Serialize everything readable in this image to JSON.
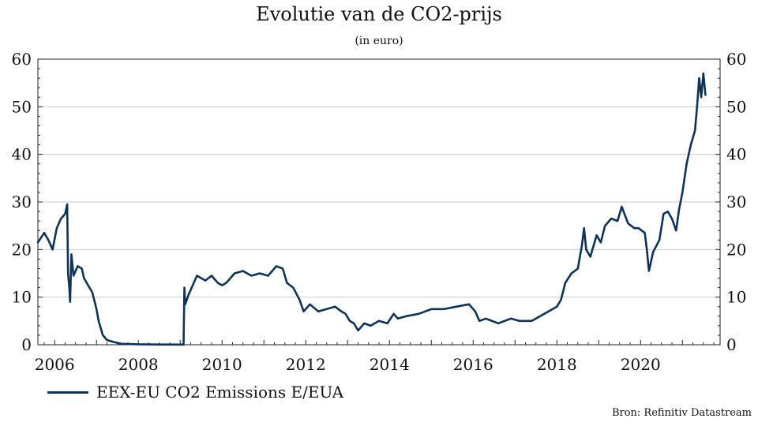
{
  "chart_data": {
    "type": "line",
    "title": "Evolutie van de CO2-prijs",
    "subtitle": "(in euro)",
    "xlabel": "",
    "ylabel": "",
    "ylim": [
      0,
      60
    ],
    "xlim": [
      2005.6,
      2021.9
    ],
    "y_ticks": [
      0,
      10,
      20,
      30,
      40,
      50,
      60
    ],
    "x_ticks": [
      2006,
      2008,
      2010,
      2012,
      2014,
      2016,
      2018,
      2020
    ],
    "x_tick_labels": [
      "2006",
      "2008",
      "2010",
      "2012",
      "2014",
      "2016",
      "2018",
      "2020"
    ],
    "grid": true,
    "legend_position": "bottom-left",
    "colors": {
      "line": "#0d3358",
      "grid": "#c8c8c8",
      "axis": "#222222"
    },
    "series": [
      {
        "name": "EEX-EU CO2 Emissions E/EUA",
        "points": [
          [
            2005.6,
            21.5
          ],
          [
            2005.75,
            23.5
          ],
          [
            2005.85,
            22.0
          ],
          [
            2005.95,
            20.0
          ],
          [
            2006.05,
            24.5
          ],
          [
            2006.15,
            26.5
          ],
          [
            2006.25,
            27.5
          ],
          [
            2006.3,
            29.5
          ],
          [
            2006.32,
            15.0
          ],
          [
            2006.35,
            12.0
          ],
          [
            2006.37,
            9.0
          ],
          [
            2006.4,
            19.0
          ],
          [
            2006.45,
            14.5
          ],
          [
            2006.55,
            16.5
          ],
          [
            2006.65,
            16.0
          ],
          [
            2006.7,
            14.0
          ],
          [
            2006.8,
            12.5
          ],
          [
            2006.9,
            11.0
          ],
          [
            2007.0,
            7.5
          ],
          [
            2007.05,
            5.0
          ],
          [
            2007.15,
            2.0
          ],
          [
            2007.25,
            1.0
          ],
          [
            2007.4,
            0.6
          ],
          [
            2007.6,
            0.2
          ],
          [
            2008.0,
            0.1
          ],
          [
            2008.5,
            0.05
          ],
          [
            2009.08,
            0.03
          ],
          [
            2009.1,
            12.0
          ],
          [
            2009.12,
            8.5
          ],
          [
            2009.2,
            10.5
          ],
          [
            2009.3,
            12.5
          ],
          [
            2009.4,
            14.5
          ],
          [
            2009.5,
            14.0
          ],
          [
            2009.6,
            13.5
          ],
          [
            2009.75,
            14.5
          ],
          [
            2009.9,
            13.0
          ],
          [
            2010.0,
            12.5
          ],
          [
            2010.1,
            13.0
          ],
          [
            2010.3,
            15.0
          ],
          [
            2010.5,
            15.5
          ],
          [
            2010.7,
            14.5
          ],
          [
            2010.9,
            15.0
          ],
          [
            2011.1,
            14.5
          ],
          [
            2011.3,
            16.5
          ],
          [
            2011.45,
            16.0
          ],
          [
            2011.55,
            13.0
          ],
          [
            2011.7,
            12.0
          ],
          [
            2011.85,
            9.5
          ],
          [
            2011.95,
            7.0
          ],
          [
            2012.1,
            8.5
          ],
          [
            2012.3,
            7.0
          ],
          [
            2012.5,
            7.5
          ],
          [
            2012.7,
            8.0
          ],
          [
            2012.85,
            7.0
          ],
          [
            2012.95,
            6.5
          ],
          [
            2013.05,
            5.0
          ],
          [
            2013.15,
            4.5
          ],
          [
            2013.25,
            3.0
          ],
          [
            2013.4,
            4.5
          ],
          [
            2013.55,
            4.0
          ],
          [
            2013.75,
            5.0
          ],
          [
            2013.95,
            4.5
          ],
          [
            2014.1,
            6.5
          ],
          [
            2014.2,
            5.5
          ],
          [
            2014.4,
            6.0
          ],
          [
            2014.7,
            6.5
          ],
          [
            2015.0,
            7.5
          ],
          [
            2015.3,
            7.5
          ],
          [
            2015.6,
            8.0
          ],
          [
            2015.9,
            8.5
          ],
          [
            2016.05,
            7.0
          ],
          [
            2016.15,
            5.0
          ],
          [
            2016.3,
            5.5
          ],
          [
            2016.6,
            4.5
          ],
          [
            2016.9,
            5.5
          ],
          [
            2017.1,
            5.0
          ],
          [
            2017.4,
            5.0
          ],
          [
            2017.6,
            6.0
          ],
          [
            2017.8,
            7.0
          ],
          [
            2018.0,
            8.0
          ],
          [
            2018.1,
            9.5
          ],
          [
            2018.2,
            13.0
          ],
          [
            2018.35,
            15.0
          ],
          [
            2018.5,
            16.0
          ],
          [
            2018.6,
            21.0
          ],
          [
            2018.65,
            24.5
          ],
          [
            2018.7,
            20.0
          ],
          [
            2018.8,
            18.5
          ],
          [
            2018.95,
            23.0
          ],
          [
            2019.05,
            21.5
          ],
          [
            2019.15,
            25.0
          ],
          [
            2019.3,
            26.5
          ],
          [
            2019.45,
            26.0
          ],
          [
            2019.55,
            29.0
          ],
          [
            2019.7,
            25.5
          ],
          [
            2019.85,
            24.5
          ],
          [
            2019.95,
            24.5
          ],
          [
            2020.1,
            23.5
          ],
          [
            2020.15,
            20.0
          ],
          [
            2020.2,
            15.5
          ],
          [
            2020.3,
            19.5
          ],
          [
            2020.45,
            22.0
          ],
          [
            2020.55,
            27.5
          ],
          [
            2020.65,
            28.0
          ],
          [
            2020.75,
            26.5
          ],
          [
            2020.85,
            24.0
          ],
          [
            2020.92,
            28.5
          ],
          [
            2021.0,
            32.0
          ],
          [
            2021.1,
            38.0
          ],
          [
            2021.2,
            42.0
          ],
          [
            2021.3,
            45.0
          ],
          [
            2021.35,
            50.0
          ],
          [
            2021.4,
            56.0
          ],
          [
            2021.45,
            52.0
          ],
          [
            2021.5,
            57.0
          ],
          [
            2021.55,
            52.5
          ]
        ]
      }
    ],
    "source": "Bron: Refinitiv Datastream"
  }
}
